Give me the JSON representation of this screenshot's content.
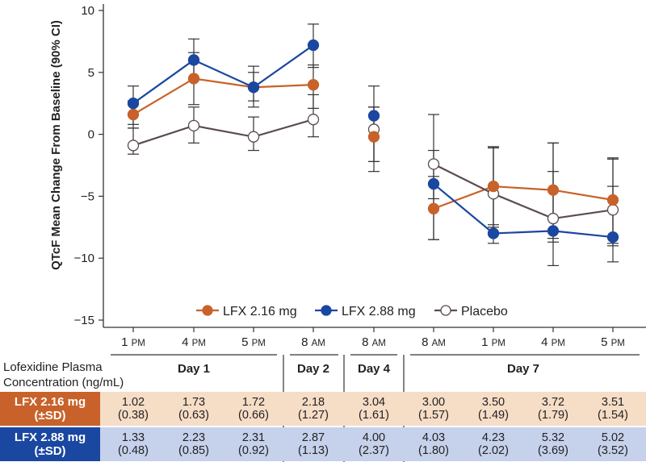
{
  "chart_data": {
    "type": "line",
    "title": "",
    "ylabel": "QTcF Mean Change From Baseline (90% CI)",
    "ylim": [
      -15,
      10
    ],
    "yticks": [
      10,
      5,
      0,
      -5,
      -10,
      -15
    ],
    "categories": [
      "1 PM",
      "4 PM",
      "5 PM",
      "8 AM",
      "8 AM",
      "8 AM",
      "1 PM",
      "4 PM",
      "5 PM"
    ],
    "category_nums": [
      "1",
      "4",
      "5",
      "8",
      "8",
      "8",
      "1",
      "4",
      "5"
    ],
    "category_suffix": [
      "PM",
      "PM",
      "PM",
      "AM",
      "AM",
      "AM",
      "PM",
      "PM",
      "PM"
    ],
    "connected_segments": [
      [
        0,
        3
      ],
      [
        4,
        4
      ],
      [
        5,
        8
      ]
    ],
    "legend_position": "bottom-center",
    "series": [
      {
        "name": "LFX 2.16 mg",
        "color": "#c8622a",
        "filled": true,
        "values": [
          1.6,
          4.5,
          3.8,
          4.0,
          -0.2,
          -6.0,
          -4.2,
          -4.5,
          -5.3
        ],
        "ci_low": [
          0.5,
          2.4,
          2.2,
          2.1,
          -2.2,
          -8.5,
          -7.5,
          -8.4,
          -8.8
        ],
        "ci_high": [
          2.7,
          6.6,
          5.5,
          5.6,
          2.2,
          -3.4,
          -1.1,
          -0.7,
          -1.9
        ]
      },
      {
        "name": "LFX 2.88 mg",
        "color": "#1a47a0",
        "filled": true,
        "values": [
          2.5,
          6.0,
          3.8,
          7.2,
          1.5,
          -4.0,
          -8.0,
          -7.8,
          -8.3
        ],
        "ci_low": [
          0.8,
          4.4,
          2.7,
          5.4,
          -3.0,
          -5.2,
          -8.8,
          -8.7,
          -10.3
        ],
        "ci_high": [
          3.9,
          7.7,
          5.0,
          8.9,
          3.9,
          -1.3,
          -1.0,
          -3.0,
          -4.2
        ]
      },
      {
        "name": "Placebo",
        "color": "#5a4c4e",
        "filled": false,
        "values": [
          -0.9,
          0.7,
          -0.2,
          1.2,
          0.4,
          -2.4,
          -4.8,
          -6.8,
          -6.1
        ],
        "ci_low": [
          -1.6,
          -0.7,
          -1.3,
          -0.2,
          -2.2,
          -8.5,
          -7.3,
          -10.6,
          -9.0
        ],
        "ci_high": [
          0.5,
          2.2,
          1.4,
          3.2,
          2.2,
          1.6,
          -1.0,
          -0.7,
          -2.0
        ]
      }
    ]
  },
  "table": {
    "header_label": [
      "Lofexidine Plasma",
      "Concentration (ng/mL)"
    ],
    "days": [
      "Day 1",
      "Day 2",
      "Day 4",
      "Day 7"
    ],
    "rows": [
      {
        "label": "LFX 2.16 mg",
        "sublabel": "(±SD)",
        "label_color": "#c8622a",
        "bg_color": "#f6ddc6",
        "means": [
          "1.02",
          "1.73",
          "1.72",
          "2.18",
          "3.04",
          "3.00",
          "3.50",
          "3.72",
          "3.51"
        ],
        "sds": [
          "(0.38)",
          "(0.63)",
          "(0.66)",
          "(1.27)",
          "(1.61)",
          "(1.57)",
          "(1.49)",
          "(1.79)",
          "(1.54)"
        ]
      },
      {
        "label": "LFX 2.88 mg",
        "sublabel": "(±SD)",
        "label_color": "#1a47a0",
        "bg_color": "#c6d1ec",
        "means": [
          "1.33",
          "2.23",
          "2.31",
          "2.87",
          "4.00",
          "4.03",
          "4.23",
          "5.32",
          "5.02"
        ],
        "sds": [
          "(0.48)",
          "(0.85)",
          "(0.92)",
          "(1.13)",
          "(2.37)",
          "(1.80)",
          "(2.02)",
          "(3.69)",
          "(3.52)"
        ]
      }
    ]
  }
}
